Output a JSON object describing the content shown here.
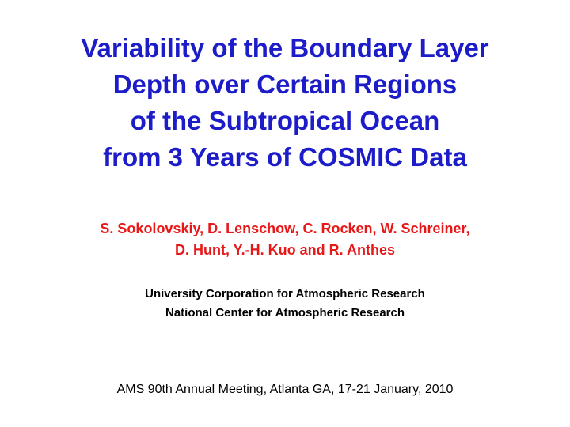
{
  "title": {
    "lines": [
      "Variability of the Boundary Layer",
      "Depth over Certain Regions",
      "of the Subtropical Ocean",
      "from 3 Years of COSMIC Data"
    ]
  },
  "authors": {
    "lines": [
      "S. Sokolovskiy, D. Lenschow, C. Rocken, W. Schreiner,",
      "D. Hunt, Y.-H. Kuo and R. Anthes"
    ]
  },
  "affiliations": {
    "lines": [
      "University Corporation for Atmospheric Research",
      "National Center for Atmospheric Research"
    ]
  },
  "meeting": "AMS 90th Annual Meeting, Atlanta GA, 17-21 January, 2010",
  "colors": {
    "title": "#1c1cc8",
    "authors": "#e81818",
    "body": "#000000",
    "background": "#ffffff"
  }
}
